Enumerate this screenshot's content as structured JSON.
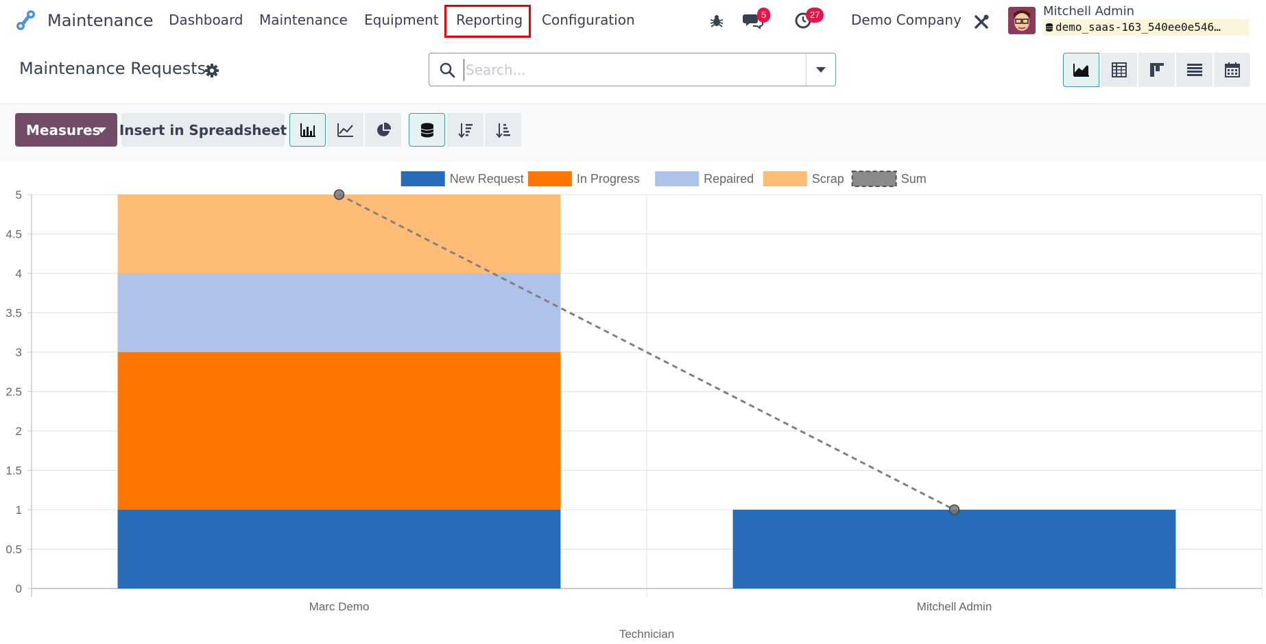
{
  "navbar": {
    "app_name": "Maintenance",
    "menu": [
      "Dashboard",
      "Maintenance",
      "Equipment",
      "Reporting",
      "Configuration"
    ],
    "highlighted_menu": "Reporting",
    "messages_badge": "5",
    "activities_badge": "27",
    "company": "Demo Company",
    "user_name": "Mitchell Admin",
    "database": "demo_saas-163_540ee0e546…"
  },
  "control_panel": {
    "title": "Maintenance Requests",
    "search_placeholder": "Search...",
    "views": [
      "graph-view-icon",
      "pivot-view-icon",
      "kanban-view-icon",
      "list-view-icon",
      "calendar-view-icon"
    ],
    "active_view": "graph-view-icon"
  },
  "toolbar": {
    "measures_label": "Measures",
    "insert_label": "Insert in Spreadsheet",
    "chart_types": [
      "bar-chart-icon",
      "line-chart-icon",
      "pie-chart-icon"
    ],
    "active_chart_type": "bar-chart-icon",
    "stacked_active": true
  },
  "chart_data": {
    "type": "bar",
    "stacked": true,
    "categories": [
      "Marc Demo",
      "Mitchell Admin"
    ],
    "series": [
      {
        "name": "New Request",
        "values": [
          1,
          1
        ],
        "color": "#276cb9"
      },
      {
        "name": "In Progress",
        "values": [
          2,
          0
        ],
        "color": "#ff7602"
      },
      {
        "name": "Repaired",
        "values": [
          1,
          0
        ],
        "color": "#aec2ea"
      },
      {
        "name": "Scrap",
        "values": [
          1,
          0
        ],
        "color": "#ffbc76"
      }
    ],
    "sum_line": {
      "name": "Sum",
      "values": [
        5,
        1
      ],
      "color": "#808080"
    },
    "xlabel": "Technician",
    "ylabel": "",
    "ylim": [
      0,
      5
    ],
    "yticks": [
      "0",
      "0.5",
      "1",
      "1.5",
      "2",
      "2.5",
      "3",
      "3.5",
      "4",
      "4.5",
      "5"
    ],
    "grid": true,
    "legend_position": "top"
  }
}
